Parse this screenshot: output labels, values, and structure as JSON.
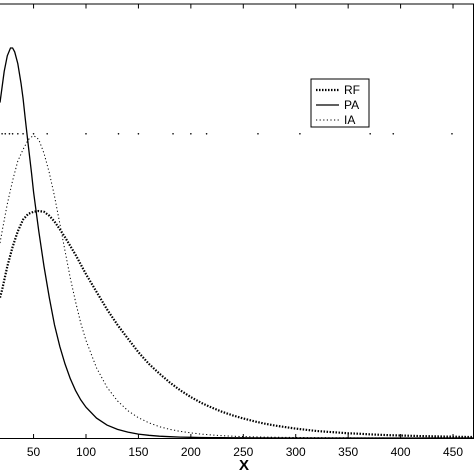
{
  "chart_data": {
    "type": "line",
    "title": "",
    "xlabel": "X",
    "ylabel": "",
    "xlim": [
      18,
      470
    ],
    "ylim": [
      0,
      1
    ],
    "x_ticks": [
      50,
      100,
      150,
      200,
      250,
      300,
      350,
      400,
      450
    ],
    "x_tick_labels": [
      "50",
      "100",
      "150",
      "200",
      "250",
      "300",
      "350",
      "400",
      "450"
    ],
    "grid": false,
    "legend_position": "top-right",
    "series": [
      {
        "name": "RF",
        "line_style": "dashdot",
        "x": [
          18,
          20,
          25,
          30,
          35,
          40,
          45,
          50,
          55,
          60,
          65,
          70,
          75,
          80,
          90,
          100,
          110,
          120,
          130,
          140,
          150,
          160,
          170,
          180,
          190,
          200,
          210,
          220,
          230,
          240,
          250,
          260,
          270,
          280,
          290,
          300,
          310,
          320,
          330,
          340,
          350,
          360,
          370,
          380,
          390,
          400,
          410,
          420,
          430,
          440,
          450,
          460,
          470
        ],
        "y": [
          0.36,
          0.38,
          0.44,
          0.49,
          0.53,
          0.56,
          0.575,
          0.58,
          0.582,
          0.58,
          0.57,
          0.555,
          0.535,
          0.515,
          0.47,
          0.42,
          0.375,
          0.33,
          0.29,
          0.255,
          0.22,
          0.19,
          0.165,
          0.142,
          0.122,
          0.105,
          0.09,
          0.078,
          0.067,
          0.058,
          0.05,
          0.043,
          0.037,
          0.032,
          0.028,
          0.024,
          0.021,
          0.018,
          0.016,
          0.014,
          0.012,
          0.011,
          0.0095,
          0.0083,
          0.0073,
          0.0064,
          0.0056,
          0.0049,
          0.0043,
          0.0038,
          0.0033,
          0.0029,
          0.0026
        ]
      },
      {
        "name": "PA",
        "line_style": "solid",
        "x": [
          18,
          20,
          22,
          25,
          28,
          30,
          32,
          35,
          38,
          40,
          42,
          45,
          48,
          50,
          55,
          60,
          65,
          70,
          75,
          80,
          85,
          90,
          95,
          100,
          110,
          120,
          130,
          140,
          150,
          160,
          170,
          180,
          190,
          200,
          210,
          220,
          230,
          240,
          250,
          270,
          300,
          350,
          400,
          450,
          470
        ],
        "y": [
          0.86,
          0.9,
          0.94,
          0.98,
          1.0,
          1.0,
          0.99,
          0.96,
          0.91,
          0.87,
          0.82,
          0.75,
          0.68,
          0.63,
          0.53,
          0.44,
          0.36,
          0.29,
          0.235,
          0.19,
          0.152,
          0.122,
          0.098,
          0.079,
          0.051,
          0.033,
          0.022,
          0.015,
          0.01,
          0.0068,
          0.0047,
          0.0033,
          0.0024,
          0.0017,
          0.0012,
          0.0009,
          0.0007,
          0.0005,
          0.0004,
          0.0002,
          0.0001,
          0.0,
          0.0,
          0.0,
          0.0
        ]
      },
      {
        "name": "IA",
        "line_style": "dotted",
        "x": [
          18,
          20,
          25,
          30,
          35,
          40,
          45,
          48,
          50,
          52,
          55,
          60,
          65,
          70,
          75,
          80,
          85,
          90,
          95,
          100,
          110,
          120,
          130,
          140,
          150,
          160,
          170,
          180,
          190,
          200,
          210,
          220,
          230,
          240,
          250,
          270,
          300,
          350,
          400,
          450,
          470
        ],
        "y": [
          0.5,
          0.53,
          0.6,
          0.66,
          0.71,
          0.74,
          0.765,
          0.772,
          0.775,
          0.772,
          0.765,
          0.73,
          0.68,
          0.62,
          0.55,
          0.48,
          0.41,
          0.35,
          0.295,
          0.25,
          0.18,
          0.13,
          0.095,
          0.07,
          0.052,
          0.039,
          0.029,
          0.022,
          0.017,
          0.013,
          0.01,
          0.0078,
          0.006,
          0.0047,
          0.0037,
          0.0023,
          0.0012,
          0.0004,
          0.0001,
          0.0,
          0.0
        ]
      }
    ],
    "extra_marks": {
      "description_free": true,
      "dotted_row_x": [
        20,
        23,
        27,
        30,
        35,
        40,
        50,
        63,
        100,
        131,
        150,
        183,
        200,
        215,
        264,
        304,
        371,
        393,
        449
      ],
      "dotted_row_y": 0.78
    }
  },
  "colors": {
    "line": "#000000",
    "background": "#ffffff"
  }
}
